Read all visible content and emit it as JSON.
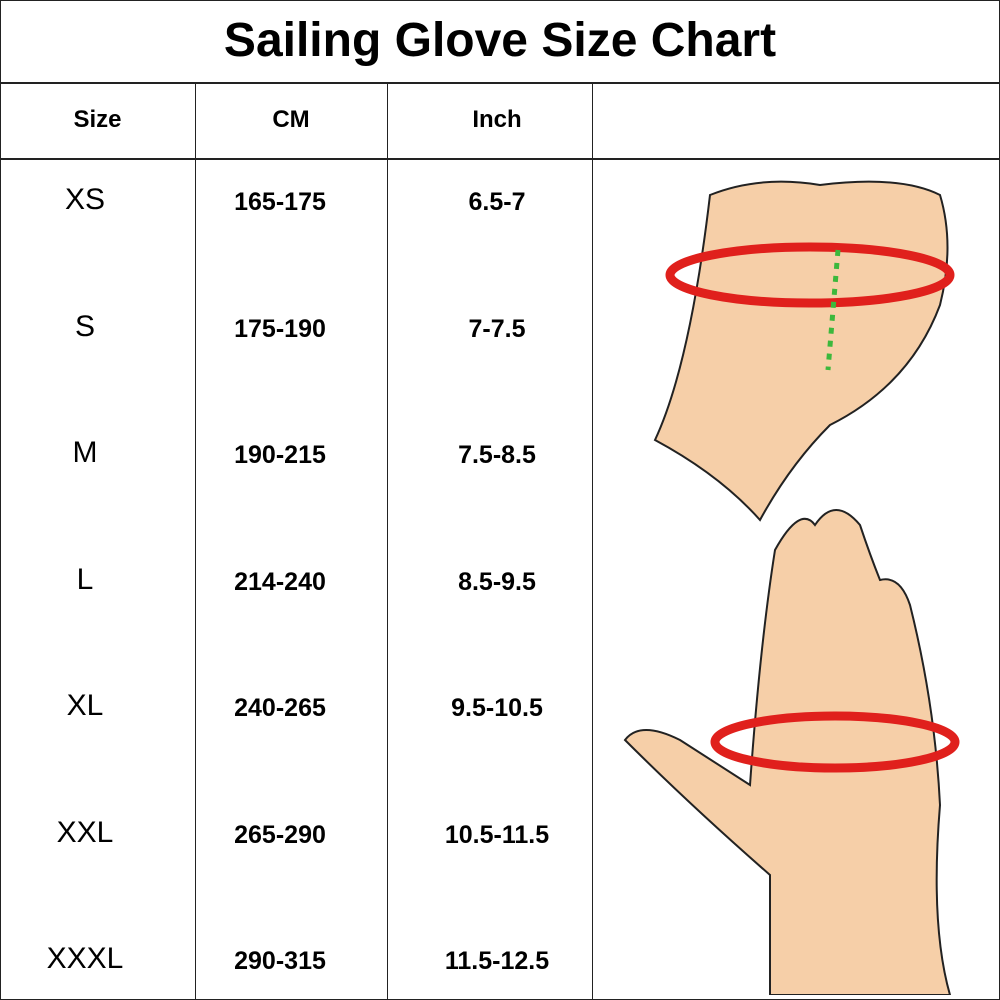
{
  "title": "Sailing Glove Size Chart",
  "headers": [
    "Size",
    "CM",
    "Inch"
  ],
  "rows": [
    {
      "size": "XS",
      "cm": "165-175",
      "inch": "6.5-7"
    },
    {
      "size": "S",
      "cm": "175-190",
      "inch": "7-7.5"
    },
    {
      "size": "M",
      "cm": "190-215",
      "inch": "7.5-8.5"
    },
    {
      "size": "L",
      "cm": "214-240",
      "inch": "8.5-9.5"
    },
    {
      "size": "XL",
      "cm": "240-265",
      "inch": "9.5-10.5"
    },
    {
      "size": "XXL",
      "cm": "265-290",
      "inch": "10.5-11.5"
    },
    {
      "size": "XXXL",
      "cm": "290-315",
      "inch": "11.5-12.5"
    }
  ],
  "colors": {
    "arrow": "#e0201c",
    "skin": "#f6cfa8",
    "guide": "#3cb83c"
  }
}
